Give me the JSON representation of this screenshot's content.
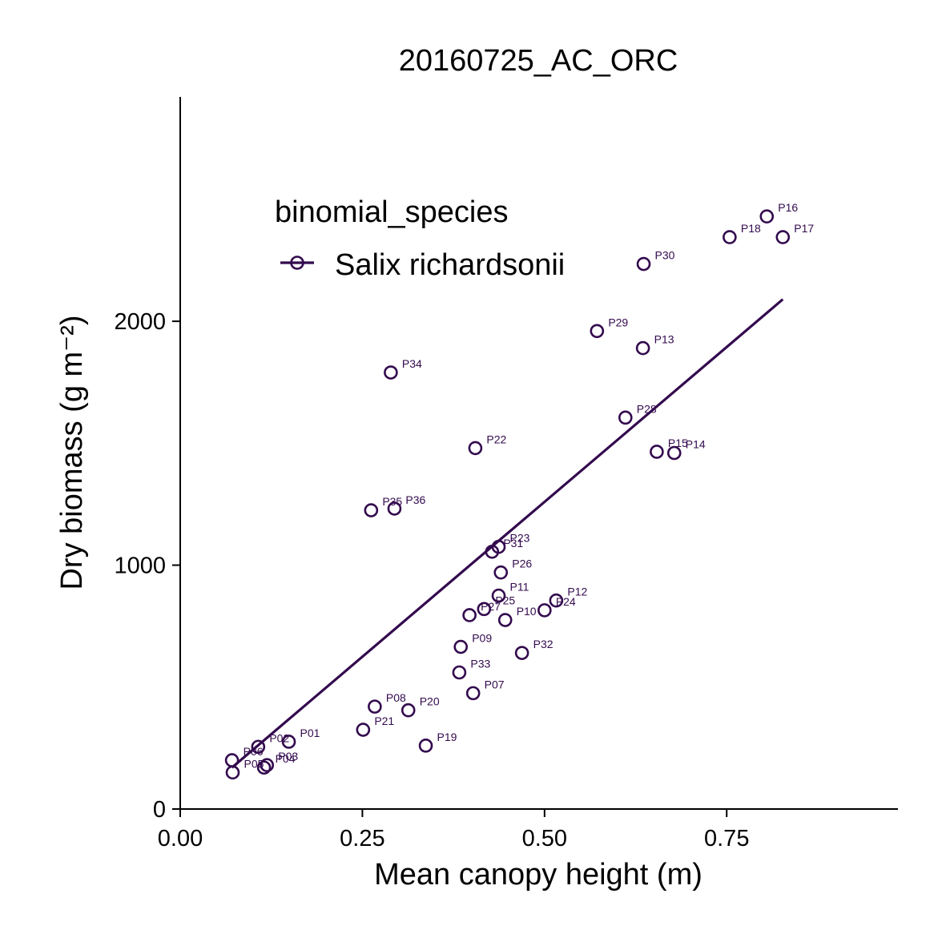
{
  "chart_data": {
    "type": "scatter",
    "title": "20160725_AC_ORC",
    "xlabel": "Mean canopy height (m)",
    "ylabel": "Dry biomass (g m⁻²)",
    "xlim": [
      0,
      0.985
    ],
    "ylim": [
      0,
      2920
    ],
    "x_ticks": [
      0,
      0.25,
      0.5,
      0.75
    ],
    "x_tick_labels": [
      "0.00",
      "0.25",
      "0.50",
      "0.75"
    ],
    "y_ticks": [
      0,
      1000,
      2000
    ],
    "y_tick_labels": [
      "0",
      "1000",
      "2000"
    ],
    "grid": false,
    "legend": {
      "title": "binomial_species",
      "placement": "top-left",
      "entries": [
        "Salix richardsonii"
      ]
    },
    "series_color": "#330a4e",
    "series": [
      {
        "name": "Salix richardsonii",
        "points": [
          {
            "label": "P01",
            "x": 0.149,
            "y": 276
          },
          {
            "label": "P02",
            "x": 0.107,
            "y": 255
          },
          {
            "label": "P03",
            "x": 0.119,
            "y": 180
          },
          {
            "label": "P04",
            "x": 0.115,
            "y": 170
          },
          {
            "label": "P05",
            "x": 0.072,
            "y": 150
          },
          {
            "label": "P06",
            "x": 0.071,
            "y": 200
          },
          {
            "label": "P07",
            "x": 0.402,
            "y": 475
          },
          {
            "label": "P08",
            "x": 0.267,
            "y": 420
          },
          {
            "label": "P09",
            "x": 0.385,
            "y": 665
          },
          {
            "label": "P10",
            "x": 0.446,
            "y": 775
          },
          {
            "label": "P11",
            "x": 0.437,
            "y": 875
          },
          {
            "label": "P12",
            "x": 0.516,
            "y": 855
          },
          {
            "label": "P13",
            "x": 0.635,
            "y": 1890
          },
          {
            "label": "P14",
            "x": 0.678,
            "y": 1460
          },
          {
            "label": "P15",
            "x": 0.654,
            "y": 1465
          },
          {
            "label": "P16",
            "x": 0.805,
            "y": 2430
          },
          {
            "label": "P17",
            "x": 0.827,
            "y": 2345
          },
          {
            "label": "P18",
            "x": 0.754,
            "y": 2345
          },
          {
            "label": "P19",
            "x": 0.337,
            "y": 260
          },
          {
            "label": "P20",
            "x": 0.313,
            "y": 405
          },
          {
            "label": "P21",
            "x": 0.251,
            "y": 325
          },
          {
            "label": "P22",
            "x": 0.405,
            "y": 1480
          },
          {
            "label": "P23",
            "x": 0.437,
            "y": 1075
          },
          {
            "label": "P24",
            "x": 0.5,
            "y": 815
          },
          {
            "label": "P25",
            "x": 0.417,
            "y": 820
          },
          {
            "label": "P26",
            "x": 0.44,
            "y": 970
          },
          {
            "label": "P27",
            "x": 0.397,
            "y": 795
          },
          {
            "label": "P28",
            "x": 0.611,
            "y": 1605
          },
          {
            "label": "P29",
            "x": 0.572,
            "y": 1960
          },
          {
            "label": "P30",
            "x": 0.636,
            "y": 2235
          },
          {
            "label": "P31",
            "x": 0.428,
            "y": 1055
          },
          {
            "label": "P32",
            "x": 0.469,
            "y": 640
          },
          {
            "label": "P33",
            "x": 0.383,
            "y": 560
          },
          {
            "label": "P34",
            "x": 0.289,
            "y": 1790
          },
          {
            "label": "P35",
            "x": 0.262,
            "y": 1225
          },
          {
            "label": "P36",
            "x": 0.294,
            "y": 1232
          }
        ]
      }
    ],
    "fit_line": {
      "x": [
        0.071,
        0.827
      ],
      "y": [
        170,
        2090
      ]
    }
  }
}
